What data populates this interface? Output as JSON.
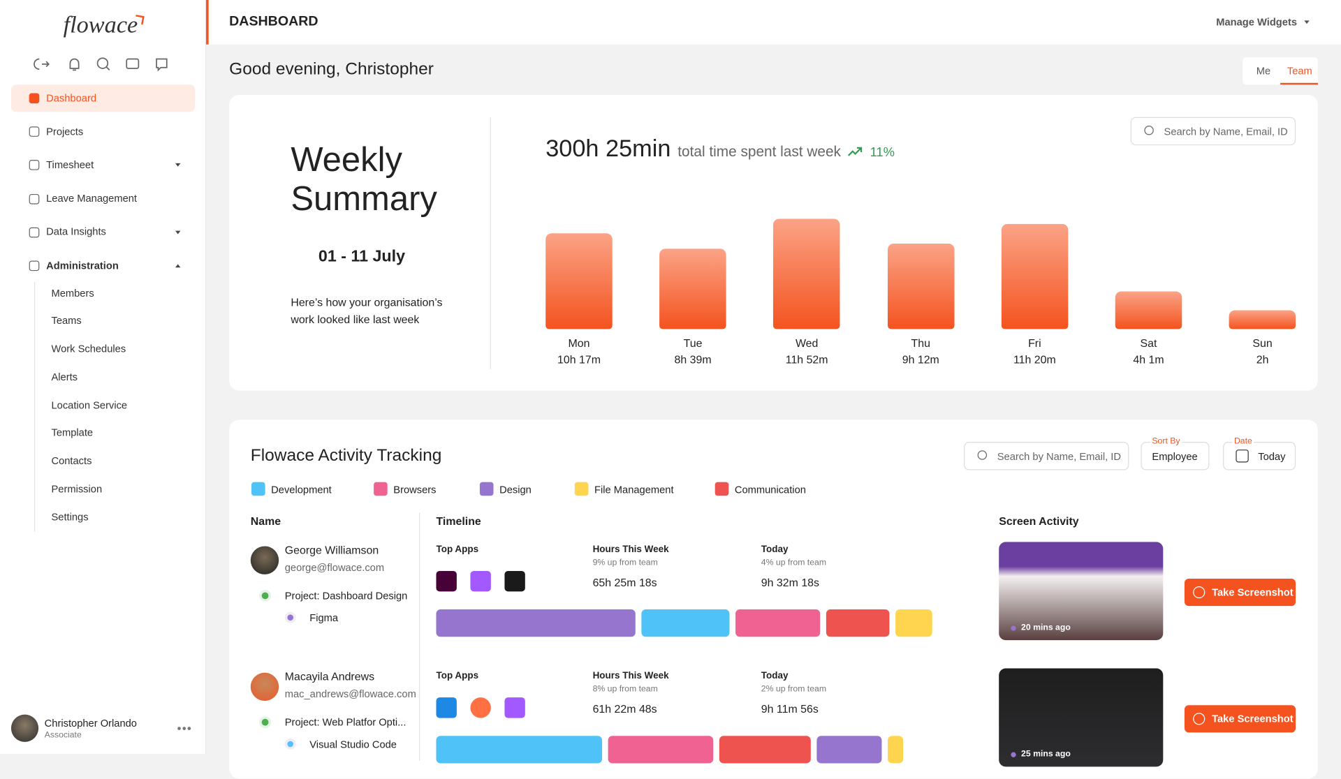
{
  "sidebar": {
    "logo": "flowace",
    "nav": [
      "Dashboard",
      "Projects",
      "Timesheet",
      "Leave Management",
      "Data Insights",
      "Administration"
    ],
    "admin_sub": [
      "Members",
      "Teams",
      "Work Schedules",
      "Alerts",
      "Location Service",
      "Template",
      "Contacts",
      "Permission",
      "Settings"
    ],
    "user": {
      "name": "Christopher Orlando",
      "role": "Associate"
    }
  },
  "header": {
    "title": "DASHBOARD",
    "manage": "Manage Widgets"
  },
  "greeting": "Good evening, Christopher",
  "toggle": [
    "Me",
    "Team"
  ],
  "weekly": {
    "title": "Weekly Summary",
    "dates": "01 - 11 July",
    "description": "Here’s how your organisation’s work looked like last week",
    "total": "300h 25min",
    "total_caption": "total time spent last week",
    "change": "11%",
    "search_placeholder": "Search by Name, Email, ID"
  },
  "chart_data": {
    "type": "bar",
    "categories": [
      "Mon",
      "Tue",
      "Wed",
      "Thu",
      "Fri",
      "Sat",
      "Sun"
    ],
    "values": [
      617,
      519,
      712,
      552,
      680,
      241,
      120
    ],
    "value_labels": [
      "10h 17m",
      "8h 39m",
      "11h 52m",
      "9h 12m",
      "11h 20m",
      "4h 1m",
      "2h"
    ],
    "color": "#f4531f"
  },
  "activity": {
    "title": "Flowace Activity Tracking",
    "search_placeholder": "Search by Name, Email, ID",
    "sort_label": "Sort By",
    "sort_value": "Employee",
    "date_label": "Date",
    "date_value": "Today",
    "legend": [
      {
        "name": "Development",
        "color": "#4fc3f7"
      },
      {
        "name": "Browsers",
        "color": "#f06292"
      },
      {
        "name": "Design",
        "color": "#9575cd"
      },
      {
        "name": "File Management",
        "color": "#ffd54f"
      },
      {
        "name": "Communication",
        "color": "#ef5350"
      }
    ],
    "columns": [
      "Name",
      "Timeline",
      "Screen Activity"
    ],
    "top_apps_label": "Top Apps",
    "hours_label": "Hours This Week",
    "today_label": "Today",
    "button": "Take Screenshot",
    "rows": [
      {
        "name": "George Williamson",
        "email": "george@flowace.com",
        "project": "Project: Dashboard Design",
        "app": "Figma",
        "app_category": 2,
        "hours_change": "9% up from team",
        "hours": "65h 25m 18s",
        "today_change": "4% up from team",
        "today": "9h 32m 18s",
        "segments": [
          {
            "category": 2,
            "value": 27.6
          },
          {
            "category": 0,
            "value": 12.2
          },
          {
            "category": 1,
            "value": 11.7
          },
          {
            "category": 4,
            "value": 8.8
          },
          {
            "category": 3,
            "value": 5.1
          }
        ],
        "screenshot_time": "20 mins ago"
      },
      {
        "name": "Macayila Andrews",
        "email": "mac_andrews@flowace.com",
        "project": "Project: Web Platfor Opti...",
        "app": "Visual Studio Code",
        "app_category": 0,
        "hours_change": "8% up from team",
        "hours": "61h 22m 48s",
        "today_change": "2% up from team",
        "today": "9h 11m 56s",
        "segments": [
          {
            "category": 0,
            "value": 23.0
          },
          {
            "category": 1,
            "value": 14.6
          },
          {
            "category": 4,
            "value": 12.6
          },
          {
            "category": 2,
            "value": 9.0
          },
          {
            "category": 3,
            "value": 2.2
          }
        ],
        "screenshot_time": "25 mins ago"
      }
    ]
  }
}
